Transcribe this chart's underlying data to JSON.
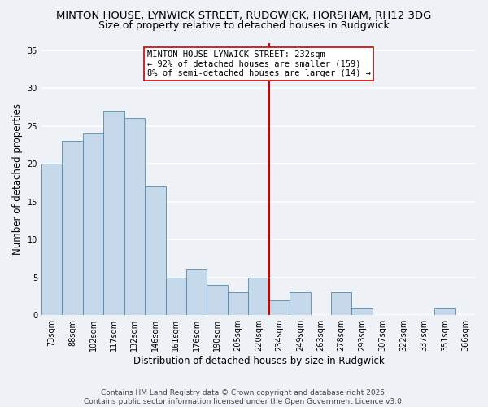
{
  "title_line1": "MINTON HOUSE, LYNWICK STREET, RUDGWICK, HORSHAM, RH12 3DG",
  "title_line2": "Size of property relative to detached houses in Rudgwick",
  "xlabel": "Distribution of detached houses by size in Rudgwick",
  "ylabel": "Number of detached properties",
  "bar_labels": [
    "73sqm",
    "88sqm",
    "102sqm",
    "117sqm",
    "132sqm",
    "146sqm",
    "161sqm",
    "176sqm",
    "190sqm",
    "205sqm",
    "220sqm",
    "234sqm",
    "249sqm",
    "263sqm",
    "278sqm",
    "293sqm",
    "307sqm",
    "322sqm",
    "337sqm",
    "351sqm",
    "366sqm"
  ],
  "bar_heights": [
    20,
    23,
    24,
    27,
    26,
    17,
    5,
    6,
    4,
    3,
    5,
    2,
    3,
    0,
    3,
    1,
    0,
    0,
    0,
    1,
    0
  ],
  "bar_color": "#c6d9ea",
  "bar_edge_color": "#5588aa",
  "vline_color": "#cc0000",
  "annotation_text": "MINTON HOUSE LYNWICK STREET: 232sqm\n← 92% of detached houses are smaller (159)\n8% of semi-detached houses are larger (14) →",
  "ylim": [
    0,
    36
  ],
  "yticks": [
    0,
    5,
    10,
    15,
    20,
    25,
    30,
    35
  ],
  "footer1": "Contains HM Land Registry data © Crown copyright and database right 2025.",
  "footer2": "Contains public sector information licensed under the Open Government Licence v3.0.",
  "background_color": "#eef2f7",
  "grid_color": "#ffffff",
  "title_fontsize": 9.5,
  "subtitle_fontsize": 9,
  "axis_label_fontsize": 8.5,
  "tick_fontsize": 7,
  "footer_fontsize": 6.5,
  "annotation_fontsize": 7.5
}
